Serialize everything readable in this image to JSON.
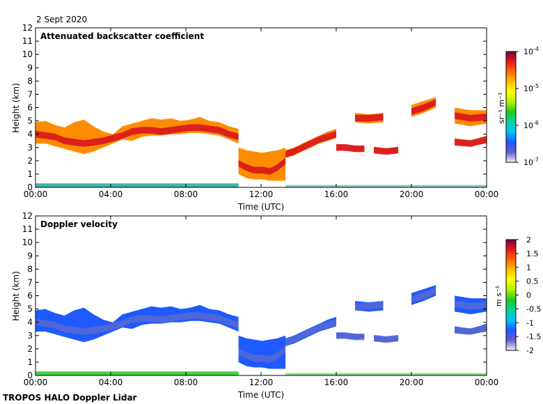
{
  "date_label": "2 Sept 2020",
  "footer_label": "TROPOS HALO Doppler Lidar",
  "colors": {
    "colormap": [
      "#f0f0ff",
      "#6a5acd",
      "#1e5aff",
      "#00bfff",
      "#00d7a0",
      "#22c822",
      "#b4f000",
      "#ffff00",
      "#ffc000",
      "#ff6a00",
      "#e41a1c",
      "#7a0040"
    ],
    "low_level_backscatter": "#1fa89a",
    "low_level_velocity": "#22c822"
  },
  "chart_data": [
    {
      "type": "heatmap",
      "title": "Attenuated backscatter coefficient",
      "xlabel": "Time (UTC)",
      "ylabel": "Height (km)",
      "xlim": [
        0,
        24
      ],
      "ylim": [
        0,
        12
      ],
      "x_ticks": [
        "00:00",
        "04:00",
        "08:00",
        "12:00",
        "16:00",
        "20:00",
        "00:00"
      ],
      "y_ticks": [
        "0",
        "1",
        "2",
        "3",
        "4",
        "5",
        "6",
        "7",
        "8",
        "9",
        "10",
        "11",
        "12"
      ],
      "colorbar": {
        "label": "sr⁻¹ m⁻¹",
        "scale": "log",
        "range": [
          1e-07,
          0.0001
        ],
        "ticks": [
          {
            "base": "10",
            "exp": "-4"
          },
          {
            "base": "10",
            "exp": "-5"
          },
          {
            "base": "10",
            "exp": "-6"
          },
          {
            "base": "10",
            "exp": "-7"
          }
        ]
      },
      "layers": [
        {
          "t0": 0.0,
          "t1": 10.8,
          "top": [
            4.9,
            5.0,
            4.7,
            4.5,
            4.9,
            5.1,
            4.6,
            4.2,
            4.0,
            4.6,
            4.8,
            5.0,
            5.2,
            5.1,
            5.2,
            5.0,
            5.1,
            5.3,
            5.0,
            4.9,
            4.6,
            4.4
          ],
          "bottom": [
            3.3,
            3.3,
            3.1,
            2.9,
            2.7,
            2.5,
            2.7,
            3.0,
            3.3,
            3.6,
            3.5,
            3.8,
            3.9,
            3.9,
            4.0,
            4.0,
            4.1,
            4.1,
            4.0,
            3.9,
            3.6,
            3.3
          ],
          "core": [
            4.0,
            3.9,
            3.8,
            3.5,
            3.4,
            3.3,
            3.4,
            3.5,
            3.7,
            3.9,
            4.2,
            4.3,
            4.3,
            4.2,
            4.3,
            4.4,
            4.5,
            4.5,
            4.4,
            4.3,
            4.0,
            3.8
          ]
        },
        {
          "t0": 10.8,
          "t1": 13.3,
          "top": [
            3.0,
            2.8,
            2.7,
            2.6,
            2.7,
            2.8,
            3.0
          ],
          "bottom": [
            1.0,
            0.7,
            0.6,
            0.6,
            0.5,
            0.5,
            0.5
          ],
          "core": [
            1.8,
            1.5,
            1.3,
            1.3,
            1.2,
            1.5,
            2.0
          ]
        },
        {
          "t0": 13.3,
          "t1": 16.0,
          "top": [
            2.8,
            3.0,
            3.3,
            3.6,
            3.9,
            4.2,
            4.4
          ],
          "bottom": [
            2.2,
            2.4,
            2.7,
            3.0,
            3.3,
            3.5,
            3.7
          ],
          "core": [
            2.5,
            2.7,
            3.0,
            3.3,
            3.6,
            3.8,
            4.0
          ]
        },
        {
          "t0": 16.0,
          "t1": 17.5,
          "top": [
            3.2,
            3.2,
            3.1,
            3.1
          ],
          "bottom": [
            2.8,
            2.8,
            2.7,
            2.8
          ],
          "core": [
            3.0,
            3.0,
            2.9,
            2.9
          ]
        },
        {
          "t0": 17.0,
          "t1": 18.5,
          "top": [
            5.6,
            5.5,
            5.6
          ],
          "bottom": [
            4.9,
            4.8,
            4.9
          ],
          "core": [
            5.2,
            5.2,
            5.3
          ]
        },
        {
          "t0": 18.0,
          "t1": 19.3,
          "top": [
            3.0,
            2.9,
            3.0
          ],
          "bottom": [
            2.6,
            2.5,
            2.6
          ],
          "core": [
            2.8,
            2.7,
            2.8
          ]
        },
        {
          "t0": 20.0,
          "t1": 21.3,
          "top": [
            6.2,
            6.5,
            6.8
          ],
          "bottom": [
            5.3,
            5.6,
            6.0
          ],
          "core": [
            5.7,
            6.0,
            6.4
          ]
        },
        {
          "t0": 22.3,
          "t1": 24.0,
          "top": [
            6.0,
            5.8,
            5.8
          ],
          "bottom": [
            4.8,
            4.6,
            4.8
          ],
          "core": [
            5.4,
            5.2,
            5.3
          ]
        },
        {
          "t0": 22.3,
          "t1": 24.0,
          "top": [
            3.7,
            3.5,
            3.9
          ],
          "bottom": [
            3.2,
            3.1,
            3.3
          ],
          "core": [
            3.4,
            3.3,
            3.6
          ]
        }
      ],
      "near_surface": {
        "top_km": 0.3
      }
    },
    {
      "type": "heatmap",
      "title": "Doppler velocity",
      "xlabel": "Time (UTC)",
      "ylabel": "Height (km)",
      "xlim": [
        0,
        24
      ],
      "ylim": [
        0,
        12
      ],
      "x_ticks": [
        "00:00",
        "04:00",
        "08:00",
        "12:00",
        "16:00",
        "20:00",
        "00:00"
      ],
      "y_ticks": [
        "0",
        "1",
        "2",
        "3",
        "4",
        "5",
        "6",
        "7",
        "8",
        "9",
        "10",
        "11",
        "12"
      ],
      "colorbar": {
        "label": "m s⁻¹",
        "scale": "linear",
        "range": [
          -2,
          2
        ],
        "ticks": [
          "2",
          "1.5",
          "1",
          "0.5",
          "0",
          "-0.5",
          "-1",
          "-1.5",
          "-2"
        ]
      },
      "layers": [
        {
          "t0": 0.0,
          "t1": 10.8,
          "top": [
            4.9,
            5.0,
            4.7,
            4.5,
            4.9,
            5.1,
            4.6,
            4.2,
            4.0,
            4.6,
            4.8,
            5.0,
            5.2,
            5.1,
            5.2,
            5.0,
            5.1,
            5.3,
            5.0,
            4.9,
            4.6,
            4.4
          ],
          "bottom": [
            3.3,
            3.3,
            3.1,
            2.9,
            2.7,
            2.5,
            2.7,
            3.0,
            3.3,
            3.6,
            3.5,
            3.8,
            3.9,
            3.9,
            4.0,
            4.0,
            4.1,
            4.1,
            4.0,
            3.9,
            3.6,
            3.3
          ],
          "core": [
            4.0,
            3.9,
            3.8,
            3.5,
            3.4,
            3.3,
            3.4,
            3.5,
            3.7,
            3.9,
            4.2,
            4.3,
            4.3,
            4.2,
            4.3,
            4.4,
            4.5,
            4.5,
            4.4,
            4.3,
            4.0,
            3.8
          ]
        },
        {
          "t0": 10.8,
          "t1": 13.3,
          "top": [
            3.0,
            2.8,
            2.7,
            2.6,
            2.7,
            2.8,
            3.0
          ],
          "bottom": [
            1.0,
            0.7,
            0.6,
            0.6,
            0.5,
            0.5,
            0.5
          ],
          "core": [
            1.8,
            1.5,
            1.3,
            1.3,
            1.2,
            1.5,
            2.0
          ]
        },
        {
          "t0": 13.3,
          "t1": 16.0,
          "top": [
            2.8,
            3.0,
            3.3,
            3.6,
            3.9,
            4.2,
            4.4
          ],
          "bottom": [
            2.2,
            2.4,
            2.7,
            3.0,
            3.3,
            3.5,
            3.7
          ],
          "core": [
            2.5,
            2.7,
            3.0,
            3.3,
            3.6,
            3.8,
            4.0
          ]
        },
        {
          "t0": 16.0,
          "t1": 17.5,
          "top": [
            3.2,
            3.2,
            3.1,
            3.1
          ],
          "bottom": [
            2.8,
            2.8,
            2.7,
            2.8
          ],
          "core": [
            3.0,
            3.0,
            2.9,
            2.9
          ]
        },
        {
          "t0": 17.0,
          "t1": 18.5,
          "top": [
            5.6,
            5.5,
            5.6
          ],
          "bottom": [
            4.9,
            4.8,
            4.9
          ],
          "core": [
            5.2,
            5.2,
            5.3
          ]
        },
        {
          "t0": 18.0,
          "t1": 19.3,
          "top": [
            3.0,
            2.9,
            3.0
          ],
          "bottom": [
            2.6,
            2.5,
            2.6
          ],
          "core": [
            2.8,
            2.7,
            2.8
          ]
        },
        {
          "t0": 20.0,
          "t1": 21.3,
          "top": [
            6.2,
            6.5,
            6.8
          ],
          "bottom": [
            5.3,
            5.6,
            6.0
          ],
          "core": [
            5.7,
            6.0,
            6.4
          ]
        },
        {
          "t0": 22.3,
          "t1": 24.0,
          "top": [
            6.0,
            5.8,
            5.8
          ],
          "bottom": [
            4.8,
            4.6,
            4.8
          ],
          "core": [
            5.4,
            5.2,
            5.3
          ]
        },
        {
          "t0": 22.3,
          "t1": 24.0,
          "top": [
            3.7,
            3.5,
            3.9
          ],
          "bottom": [
            3.2,
            3.1,
            3.3
          ],
          "core": [
            3.4,
            3.3,
            3.6
          ]
        }
      ],
      "near_surface": {
        "top_km": 0.3
      }
    }
  ]
}
